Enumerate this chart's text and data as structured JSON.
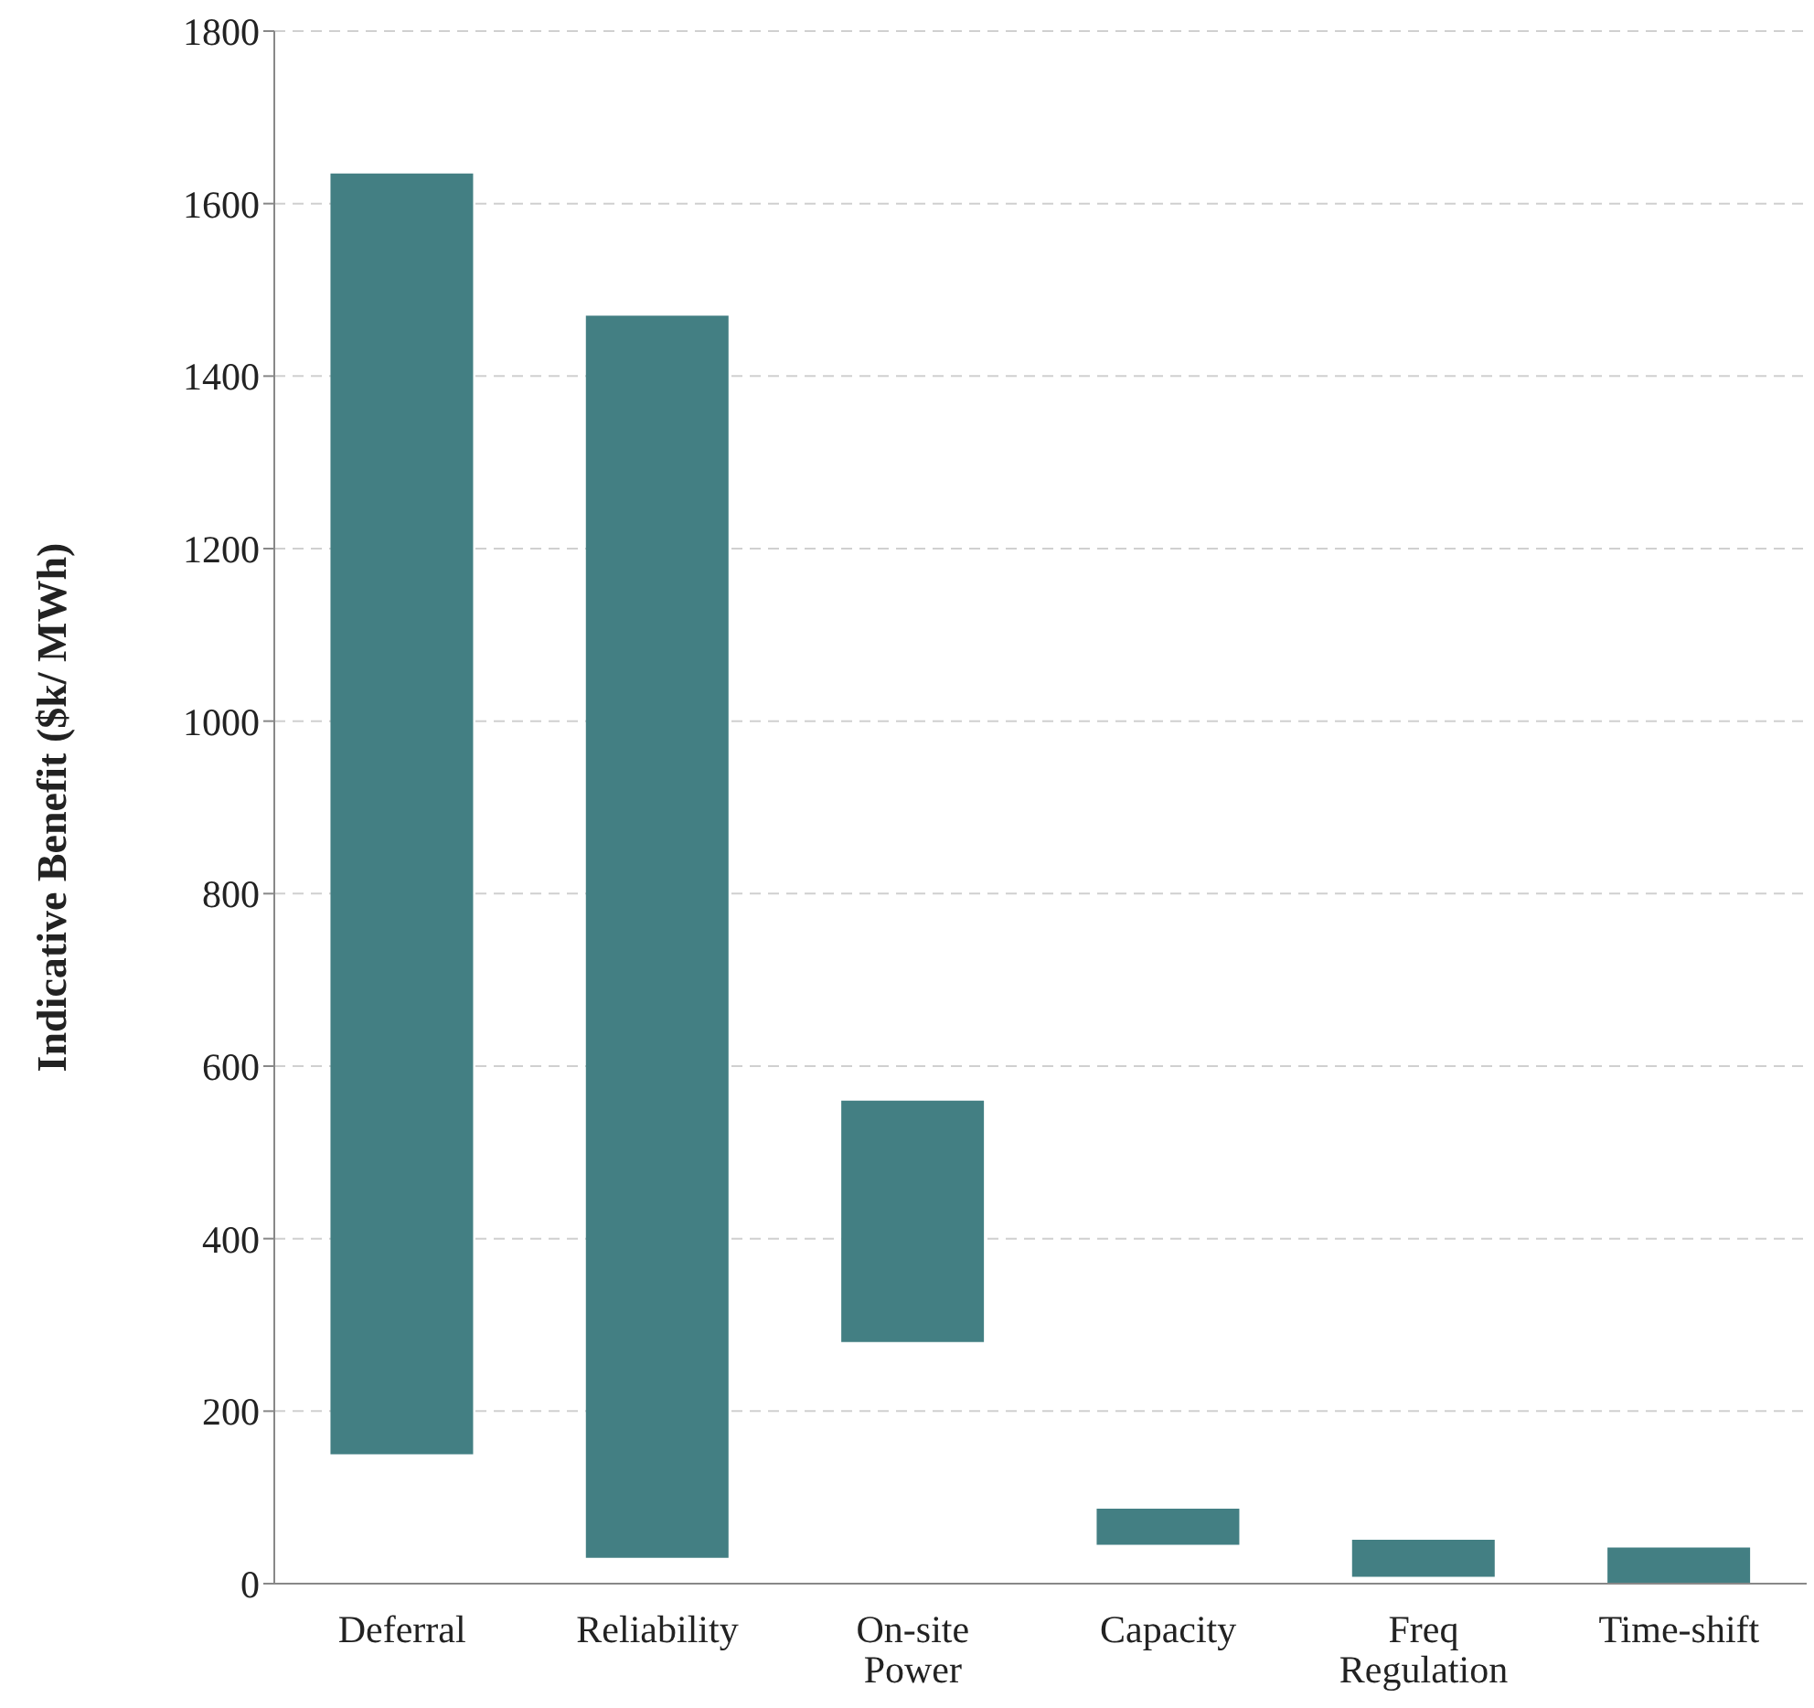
{
  "chart_data": {
    "type": "bar",
    "ylabel": "Indicative Benefit ($k/ MWh)",
    "categories": [
      "Deferral",
      "Reliability",
      "On-site Power",
      "Capacity",
      "Freq Regulation",
      "Time-shift"
    ],
    "base": [
      150,
      30,
      280,
      45,
      8,
      0
    ],
    "values": [
      1485,
      1440,
      280,
      42,
      43,
      42
    ],
    "color": "#437f83",
    "ylim": [
      0,
      1800
    ],
    "yticks": [
      0,
      200,
      400,
      600,
      800,
      1000,
      1200,
      1400,
      1600,
      1800
    ],
    "grid": "y"
  }
}
